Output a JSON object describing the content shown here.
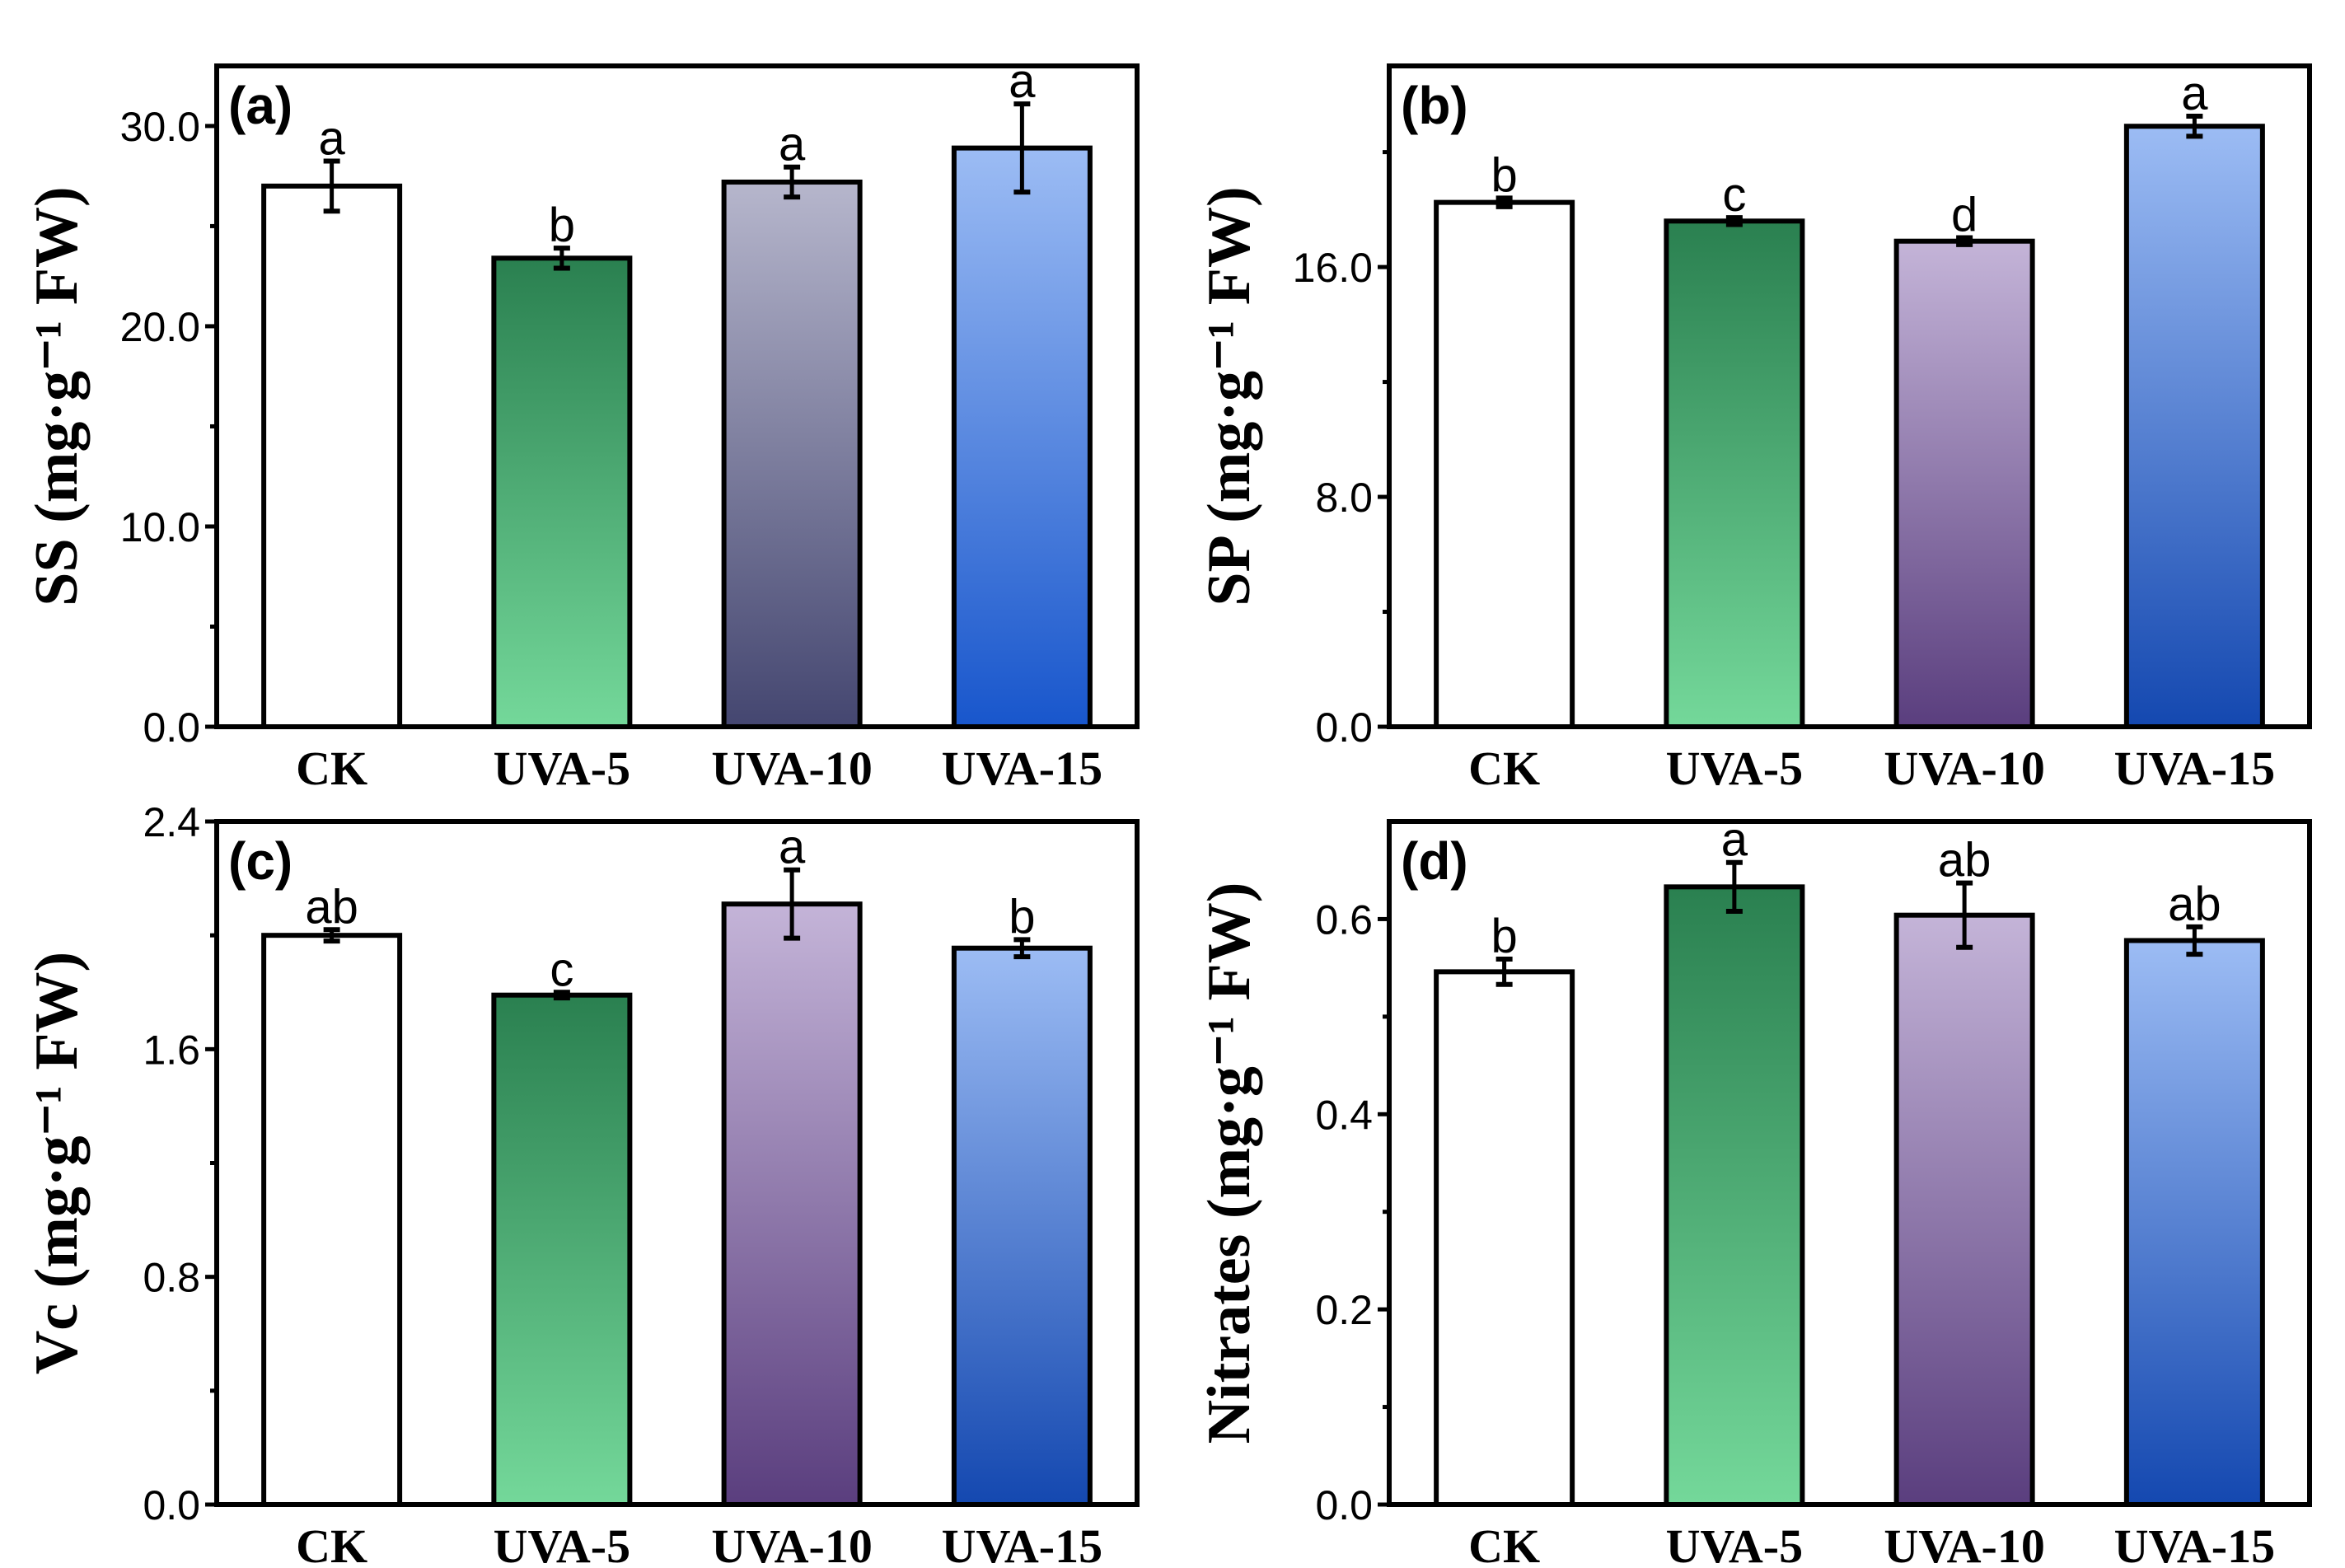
{
  "chart_data": [
    {
      "type": "bar",
      "panel_label": "(a)",
      "ylabel": "SS (mg·g⁻¹ FW)",
      "categories": [
        "CK",
        "UVA-5",
        "UVA-10",
        "UVA-15"
      ],
      "values": [
        27.0,
        23.4,
        27.2,
        28.9
      ],
      "errors": [
        1.25,
        0.5,
        0.75,
        2.2
      ],
      "significance": [
        "a",
        "b",
        "a",
        "a"
      ],
      "ylim": [
        0,
        33
      ],
      "yticks": [
        0,
        10,
        20,
        30
      ],
      "ytick_labels": [
        "0.0",
        "10.0",
        "20.0",
        "30.0"
      ],
      "minor_ticks": [
        5,
        15,
        25
      ],
      "colors": [
        [
          "#ffffff",
          "#ffffff"
        ],
        [
          "#2a8050",
          "#74d89a"
        ],
        [
          "#b6b6cc",
          "#444670"
        ],
        [
          "#9cbcf4",
          "#1856cc"
        ]
      ]
    },
    {
      "type": "bar",
      "panel_label": "(b)",
      "ylabel": "SP (mg·g⁻¹ FW)",
      "categories": [
        "CK",
        "UVA-5",
        "UVA-10",
        "UVA-15"
      ],
      "values": [
        18.25,
        17.6,
        16.9,
        20.9
      ],
      "errors": [
        0.15,
        0.12,
        0.12,
        0.35
      ],
      "significance": [
        "b",
        "c",
        "d",
        "a"
      ],
      "ylim": [
        0,
        23
      ],
      "yticks": [
        0,
        8,
        16
      ],
      "ytick_labels": [
        "0.0",
        "8.0",
        "16.0"
      ],
      "minor_ticks": [
        4,
        12,
        20
      ],
      "colors": [
        [
          "#ffffff",
          "#ffffff"
        ],
        [
          "#2a8050",
          "#74d89a"
        ],
        [
          "#c4b4d8",
          "#5a3e7e"
        ],
        [
          "#9cbcf4",
          "#1448b0"
        ]
      ]
    },
    {
      "type": "bar",
      "panel_label": "(c)",
      "ylabel": "Vc (mg·g⁻¹ FW)",
      "categories": [
        "CK",
        "UVA-5",
        "UVA-10",
        "UVA-15"
      ],
      "values": [
        2.0,
        1.79,
        2.11,
        1.955
      ],
      "errors": [
        0.02,
        0.01,
        0.12,
        0.03
      ],
      "significance": [
        "ab",
        "c",
        "a",
        "b"
      ],
      "ylim": [
        0,
        2.4
      ],
      "yticks": [
        0,
        0.8,
        1.6,
        2.4
      ],
      "ytick_labels": [
        "0.0",
        "0.8",
        "1.6",
        "2.4"
      ],
      "minor_ticks": [
        0.4,
        1.2,
        2.0
      ],
      "colors": [
        [
          "#ffffff",
          "#ffffff"
        ],
        [
          "#2a8050",
          "#74d89a"
        ],
        [
          "#c4b4d8",
          "#5a3e7e"
        ],
        [
          "#9cbcf4",
          "#1448b0"
        ]
      ]
    },
    {
      "type": "bar",
      "panel_label": "(d)",
      "ylabel": "Nitrates (mg·g⁻¹ FW)",
      "categories": [
        "CK",
        "UVA-5",
        "UVA-10",
        "UVA-15"
      ],
      "values": [
        0.546,
        0.633,
        0.604,
        0.578
      ],
      "errors": [
        0.013,
        0.025,
        0.033,
        0.014
      ],
      "significance": [
        "b",
        "a",
        "ab",
        "ab"
      ],
      "ylim": [
        0,
        0.7
      ],
      "yticks": [
        0,
        0.2,
        0.4,
        0.6
      ],
      "ytick_labels": [
        "0.0",
        "0.2",
        "0.4",
        "0.6"
      ],
      "minor_ticks": [
        0.1,
        0.3,
        0.5
      ],
      "colors": [
        [
          "#ffffff",
          "#ffffff"
        ],
        [
          "#2a8050",
          "#74d89a"
        ],
        [
          "#c4b4d8",
          "#5a3e7e"
        ],
        [
          "#9cbcf4",
          "#1448b0"
        ]
      ]
    }
  ]
}
